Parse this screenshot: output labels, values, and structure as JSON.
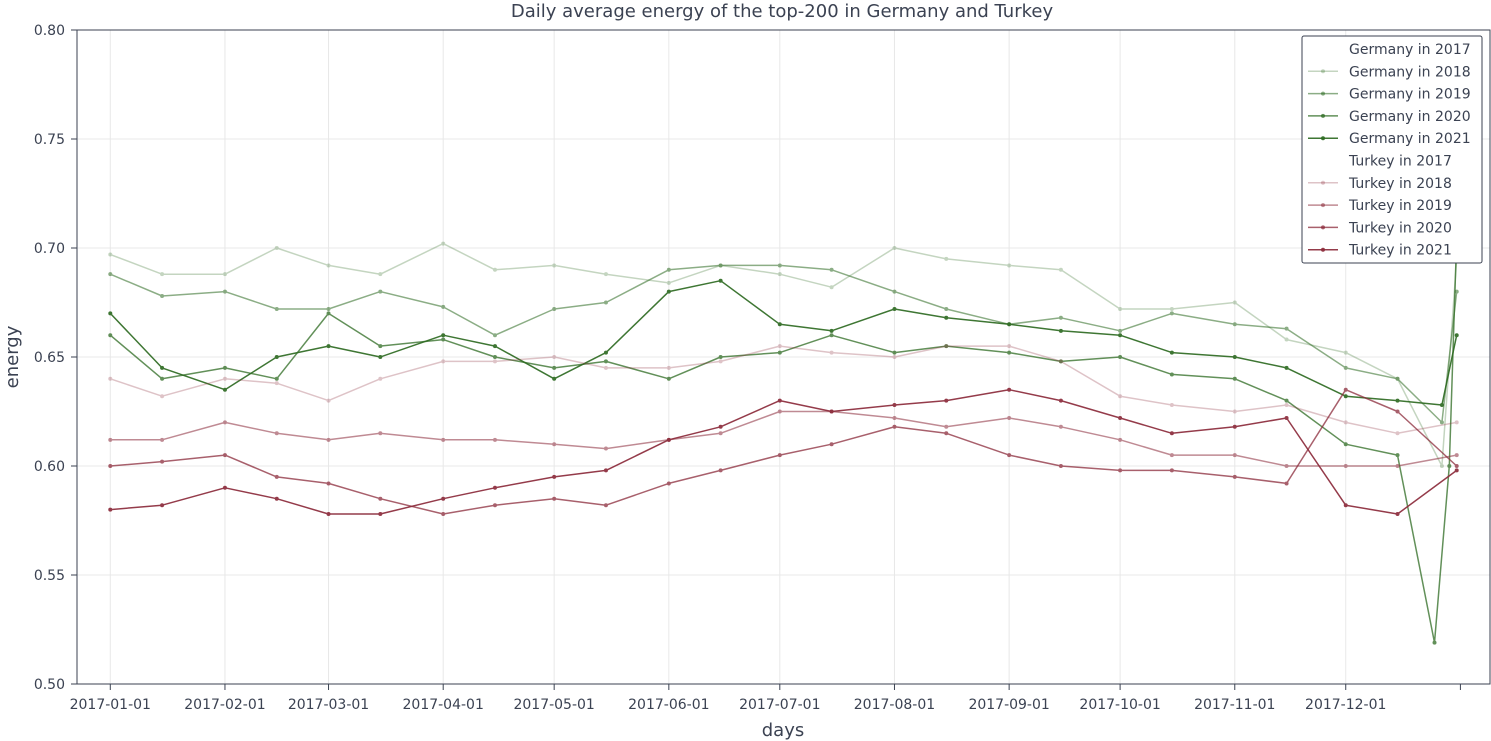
{
  "chart_data": {
    "type": "line",
    "title": "Daily average energy of the top-200 in Germany and Turkey",
    "xlabel": "days",
    "ylabel": "energy",
    "x_range": [
      "2016-12-23",
      "2018-01-09"
    ],
    "x_ticks": [
      "2017-01-01",
      "2017-02-01",
      "2017-03-01",
      "2017-04-01",
      "2017-05-01",
      "2017-06-01",
      "2017-07-01",
      "2017-08-01",
      "2017-09-01",
      "2017-10-01",
      "2017-11-01",
      "2017-12-01"
    ],
    "ylim": [
      0.5,
      0.8
    ],
    "y_ticks": [
      0.5,
      0.55,
      0.6,
      0.65,
      0.7,
      0.75,
      0.8
    ],
    "y_tick_labels": [
      "0.50",
      "0.55",
      "0.60",
      "0.65",
      "0.70",
      "0.75",
      "0.80"
    ],
    "grid": true,
    "legend_position": "top-right",
    "series": [
      {
        "name": "Germany in 2017",
        "color": "#ffffff",
        "opacity": 0.0,
        "points": []
      },
      {
        "name": "Germany in 2018",
        "color": "#2e6b22",
        "opacity": 0.28,
        "points": [
          [
            "2017-01-01",
            0.697
          ],
          [
            "2017-01-15",
            0.688
          ],
          [
            "2017-02-01",
            0.688
          ],
          [
            "2017-02-15",
            0.7
          ],
          [
            "2017-03-01",
            0.692
          ],
          [
            "2017-03-15",
            0.688
          ],
          [
            "2017-04-01",
            0.702
          ],
          [
            "2017-04-15",
            0.69
          ],
          [
            "2017-05-01",
            0.692
          ],
          [
            "2017-05-15",
            0.688
          ],
          [
            "2017-06-01",
            0.684
          ],
          [
            "2017-06-15",
            0.692
          ],
          [
            "2017-07-01",
            0.688
          ],
          [
            "2017-07-15",
            0.682
          ],
          [
            "2017-08-01",
            0.7
          ],
          [
            "2017-08-15",
            0.695
          ],
          [
            "2017-09-01",
            0.692
          ],
          [
            "2017-09-15",
            0.69
          ],
          [
            "2017-10-01",
            0.672
          ],
          [
            "2017-10-15",
            0.672
          ],
          [
            "2017-11-01",
            0.675
          ],
          [
            "2017-11-15",
            0.658
          ],
          [
            "2017-12-01",
            0.652
          ],
          [
            "2017-12-15",
            0.64
          ],
          [
            "2017-12-27",
            0.6
          ],
          [
            "2017-12-31",
            0.695
          ]
        ]
      },
      {
        "name": "Germany in 2019",
        "color": "#2e6b22",
        "opacity": 0.55,
        "points": [
          [
            "2017-01-01",
            0.688
          ],
          [
            "2017-01-15",
            0.678
          ],
          [
            "2017-02-01",
            0.68
          ],
          [
            "2017-02-15",
            0.672
          ],
          [
            "2017-03-01",
            0.672
          ],
          [
            "2017-03-15",
            0.68
          ],
          [
            "2017-04-01",
            0.673
          ],
          [
            "2017-04-15",
            0.66
          ],
          [
            "2017-05-01",
            0.672
          ],
          [
            "2017-05-15",
            0.675
          ],
          [
            "2017-06-01",
            0.69
          ],
          [
            "2017-06-15",
            0.692
          ],
          [
            "2017-07-01",
            0.692
          ],
          [
            "2017-07-15",
            0.69
          ],
          [
            "2017-08-01",
            0.68
          ],
          [
            "2017-08-15",
            0.672
          ],
          [
            "2017-09-01",
            0.665
          ],
          [
            "2017-09-15",
            0.668
          ],
          [
            "2017-10-01",
            0.662
          ],
          [
            "2017-10-15",
            0.67
          ],
          [
            "2017-11-01",
            0.665
          ],
          [
            "2017-11-15",
            0.663
          ],
          [
            "2017-12-01",
            0.645
          ],
          [
            "2017-12-15",
            0.64
          ],
          [
            "2017-12-27",
            0.62
          ],
          [
            "2017-12-31",
            0.68
          ]
        ]
      },
      {
        "name": "Germany in 2020",
        "color": "#2e6b22",
        "opacity": 0.75,
        "points": [
          [
            "2017-01-01",
            0.66
          ],
          [
            "2017-01-15",
            0.64
          ],
          [
            "2017-02-01",
            0.645
          ],
          [
            "2017-02-15",
            0.64
          ],
          [
            "2017-03-01",
            0.67
          ],
          [
            "2017-03-15",
            0.655
          ],
          [
            "2017-04-01",
            0.658
          ],
          [
            "2017-04-15",
            0.65
          ],
          [
            "2017-05-01",
            0.645
          ],
          [
            "2017-05-15",
            0.648
          ],
          [
            "2017-06-01",
            0.64
          ],
          [
            "2017-06-15",
            0.65
          ],
          [
            "2017-07-01",
            0.652
          ],
          [
            "2017-07-15",
            0.66
          ],
          [
            "2017-08-01",
            0.652
          ],
          [
            "2017-08-15",
            0.655
          ],
          [
            "2017-09-01",
            0.652
          ],
          [
            "2017-09-15",
            0.648
          ],
          [
            "2017-10-01",
            0.65
          ],
          [
            "2017-10-15",
            0.642
          ],
          [
            "2017-11-01",
            0.64
          ],
          [
            "2017-11-15",
            0.63
          ],
          [
            "2017-12-01",
            0.61
          ],
          [
            "2017-12-15",
            0.605
          ],
          [
            "2017-12-25",
            0.519
          ],
          [
            "2017-12-29",
            0.6
          ],
          [
            "2017-12-31",
            0.705
          ]
        ]
      },
      {
        "name": "Germany in 2021",
        "color": "#2e6b22",
        "opacity": 0.92,
        "points": [
          [
            "2017-01-01",
            0.67
          ],
          [
            "2017-01-15",
            0.645
          ],
          [
            "2017-02-01",
            0.635
          ],
          [
            "2017-02-15",
            0.65
          ],
          [
            "2017-03-01",
            0.655
          ],
          [
            "2017-03-15",
            0.65
          ],
          [
            "2017-04-01",
            0.66
          ],
          [
            "2017-04-15",
            0.655
          ],
          [
            "2017-05-01",
            0.64
          ],
          [
            "2017-05-15",
            0.652
          ],
          [
            "2017-06-01",
            0.68
          ],
          [
            "2017-06-15",
            0.685
          ],
          [
            "2017-07-01",
            0.665
          ],
          [
            "2017-07-15",
            0.662
          ],
          [
            "2017-08-01",
            0.672
          ],
          [
            "2017-08-15",
            0.668
          ],
          [
            "2017-09-01",
            0.665
          ],
          [
            "2017-09-15",
            0.662
          ],
          [
            "2017-10-01",
            0.66
          ],
          [
            "2017-10-15",
            0.652
          ],
          [
            "2017-11-01",
            0.65
          ],
          [
            "2017-11-15",
            0.645
          ],
          [
            "2017-12-01",
            0.632
          ],
          [
            "2017-12-15",
            0.63
          ],
          [
            "2017-12-27",
            0.628
          ],
          [
            "2017-12-31",
            0.66
          ]
        ]
      },
      {
        "name": "Turkey in 2017",
        "color": "#ffffff",
        "opacity": 0.0,
        "points": []
      },
      {
        "name": "Turkey in 2018",
        "color": "#8c2b3b",
        "opacity": 0.28,
        "points": [
          [
            "2017-01-01",
            0.64
          ],
          [
            "2017-01-15",
            0.632
          ],
          [
            "2017-02-01",
            0.64
          ],
          [
            "2017-02-15",
            0.638
          ],
          [
            "2017-03-01",
            0.63
          ],
          [
            "2017-03-15",
            0.64
          ],
          [
            "2017-04-01",
            0.648
          ],
          [
            "2017-04-15",
            0.648
          ],
          [
            "2017-05-01",
            0.65
          ],
          [
            "2017-05-15",
            0.645
          ],
          [
            "2017-06-01",
            0.645
          ],
          [
            "2017-06-15",
            0.648
          ],
          [
            "2017-07-01",
            0.655
          ],
          [
            "2017-07-15",
            0.652
          ],
          [
            "2017-08-01",
            0.65
          ],
          [
            "2017-08-15",
            0.655
          ],
          [
            "2017-09-01",
            0.655
          ],
          [
            "2017-09-15",
            0.648
          ],
          [
            "2017-10-01",
            0.632
          ],
          [
            "2017-10-15",
            0.628
          ],
          [
            "2017-11-01",
            0.625
          ],
          [
            "2017-11-15",
            0.628
          ],
          [
            "2017-12-01",
            0.62
          ],
          [
            "2017-12-15",
            0.615
          ],
          [
            "2017-12-31",
            0.62
          ]
        ]
      },
      {
        "name": "Turkey in 2019",
        "color": "#8c2b3b",
        "opacity": 0.55,
        "points": [
          [
            "2017-01-01",
            0.612
          ],
          [
            "2017-01-15",
            0.612
          ],
          [
            "2017-02-01",
            0.62
          ],
          [
            "2017-02-15",
            0.615
          ],
          [
            "2017-03-01",
            0.612
          ],
          [
            "2017-03-15",
            0.615
          ],
          [
            "2017-04-01",
            0.612
          ],
          [
            "2017-04-15",
            0.612
          ],
          [
            "2017-05-01",
            0.61
          ],
          [
            "2017-05-15",
            0.608
          ],
          [
            "2017-06-01",
            0.612
          ],
          [
            "2017-06-15",
            0.615
          ],
          [
            "2017-07-01",
            0.625
          ],
          [
            "2017-07-15",
            0.625
          ],
          [
            "2017-08-01",
            0.622
          ],
          [
            "2017-08-15",
            0.618
          ],
          [
            "2017-09-01",
            0.622
          ],
          [
            "2017-09-15",
            0.618
          ],
          [
            "2017-10-01",
            0.612
          ],
          [
            "2017-10-15",
            0.605
          ],
          [
            "2017-11-01",
            0.605
          ],
          [
            "2017-11-15",
            0.6
          ],
          [
            "2017-12-01",
            0.6
          ],
          [
            "2017-12-15",
            0.6
          ],
          [
            "2017-12-31",
            0.605
          ]
        ]
      },
      {
        "name": "Turkey in 2020",
        "color": "#8c2b3b",
        "opacity": 0.75,
        "points": [
          [
            "2017-01-01",
            0.6
          ],
          [
            "2017-01-15",
            0.602
          ],
          [
            "2017-02-01",
            0.605
          ],
          [
            "2017-02-15",
            0.595
          ],
          [
            "2017-03-01",
            0.592
          ],
          [
            "2017-03-15",
            0.585
          ],
          [
            "2017-04-01",
            0.578
          ],
          [
            "2017-04-15",
            0.582
          ],
          [
            "2017-05-01",
            0.585
          ],
          [
            "2017-05-15",
            0.582
          ],
          [
            "2017-06-01",
            0.592
          ],
          [
            "2017-06-15",
            0.598
          ],
          [
            "2017-07-01",
            0.605
          ],
          [
            "2017-07-15",
            0.61
          ],
          [
            "2017-08-01",
            0.618
          ],
          [
            "2017-08-15",
            0.615
          ],
          [
            "2017-09-01",
            0.605
          ],
          [
            "2017-09-15",
            0.6
          ],
          [
            "2017-10-01",
            0.598
          ],
          [
            "2017-10-15",
            0.598
          ],
          [
            "2017-11-01",
            0.595
          ],
          [
            "2017-11-15",
            0.592
          ],
          [
            "2017-12-01",
            0.635
          ],
          [
            "2017-12-15",
            0.625
          ],
          [
            "2017-12-31",
            0.6
          ]
        ]
      },
      {
        "name": "Turkey in 2021",
        "color": "#8c2b3b",
        "opacity": 0.92,
        "points": [
          [
            "2017-01-01",
            0.58
          ],
          [
            "2017-01-15",
            0.582
          ],
          [
            "2017-02-01",
            0.59
          ],
          [
            "2017-02-15",
            0.585
          ],
          [
            "2017-03-01",
            0.578
          ],
          [
            "2017-03-15",
            0.578
          ],
          [
            "2017-04-01",
            0.585
          ],
          [
            "2017-04-15",
            0.59
          ],
          [
            "2017-05-01",
            0.595
          ],
          [
            "2017-05-15",
            0.598
          ],
          [
            "2017-06-01",
            0.612
          ],
          [
            "2017-06-15",
            0.618
          ],
          [
            "2017-07-01",
            0.63
          ],
          [
            "2017-07-15",
            0.625
          ],
          [
            "2017-08-01",
            0.628
          ],
          [
            "2017-08-15",
            0.63
          ],
          [
            "2017-09-01",
            0.635
          ],
          [
            "2017-09-15",
            0.63
          ],
          [
            "2017-10-01",
            0.622
          ],
          [
            "2017-10-15",
            0.615
          ],
          [
            "2017-11-01",
            0.618
          ],
          [
            "2017-11-15",
            0.622
          ],
          [
            "2017-12-01",
            0.582
          ],
          [
            "2017-12-15",
            0.578
          ],
          [
            "2017-12-31",
            0.598
          ]
        ]
      }
    ]
  }
}
